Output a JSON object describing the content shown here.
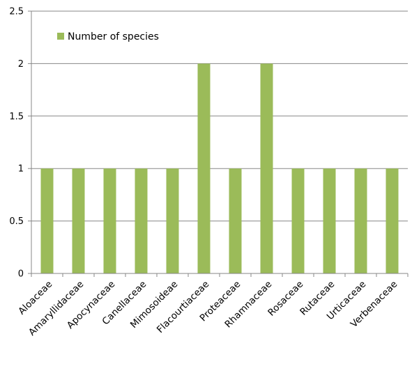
{
  "chart_data": {
    "type": "bar",
    "categories": [
      "Aloaceae",
      "Amaryllidaceae",
      "Apocynaceae",
      "Canellaceae",
      "Mimosoideae",
      "Flacourtiaceae",
      "Proteaceae",
      "Rhamnaceae",
      "Rosaceae",
      "Rutaceae",
      "Urticaceae",
      "Verbenaceae"
    ],
    "series": [
      {
        "name": "Number of species",
        "values": [
          1,
          1,
          1,
          1,
          1,
          2,
          1,
          2,
          1,
          1,
          1,
          1
        ]
      }
    ],
    "ylim": [
      0,
      2.5
    ],
    "yticks": [
      "0",
      "0.5",
      "1",
      "1.5",
      "2",
      "2.5"
    ],
    "grid": true,
    "legend": "top-left",
    "colors": {
      "bar": "#9BBB59",
      "grid": "#878787",
      "axis": "#878787"
    }
  }
}
